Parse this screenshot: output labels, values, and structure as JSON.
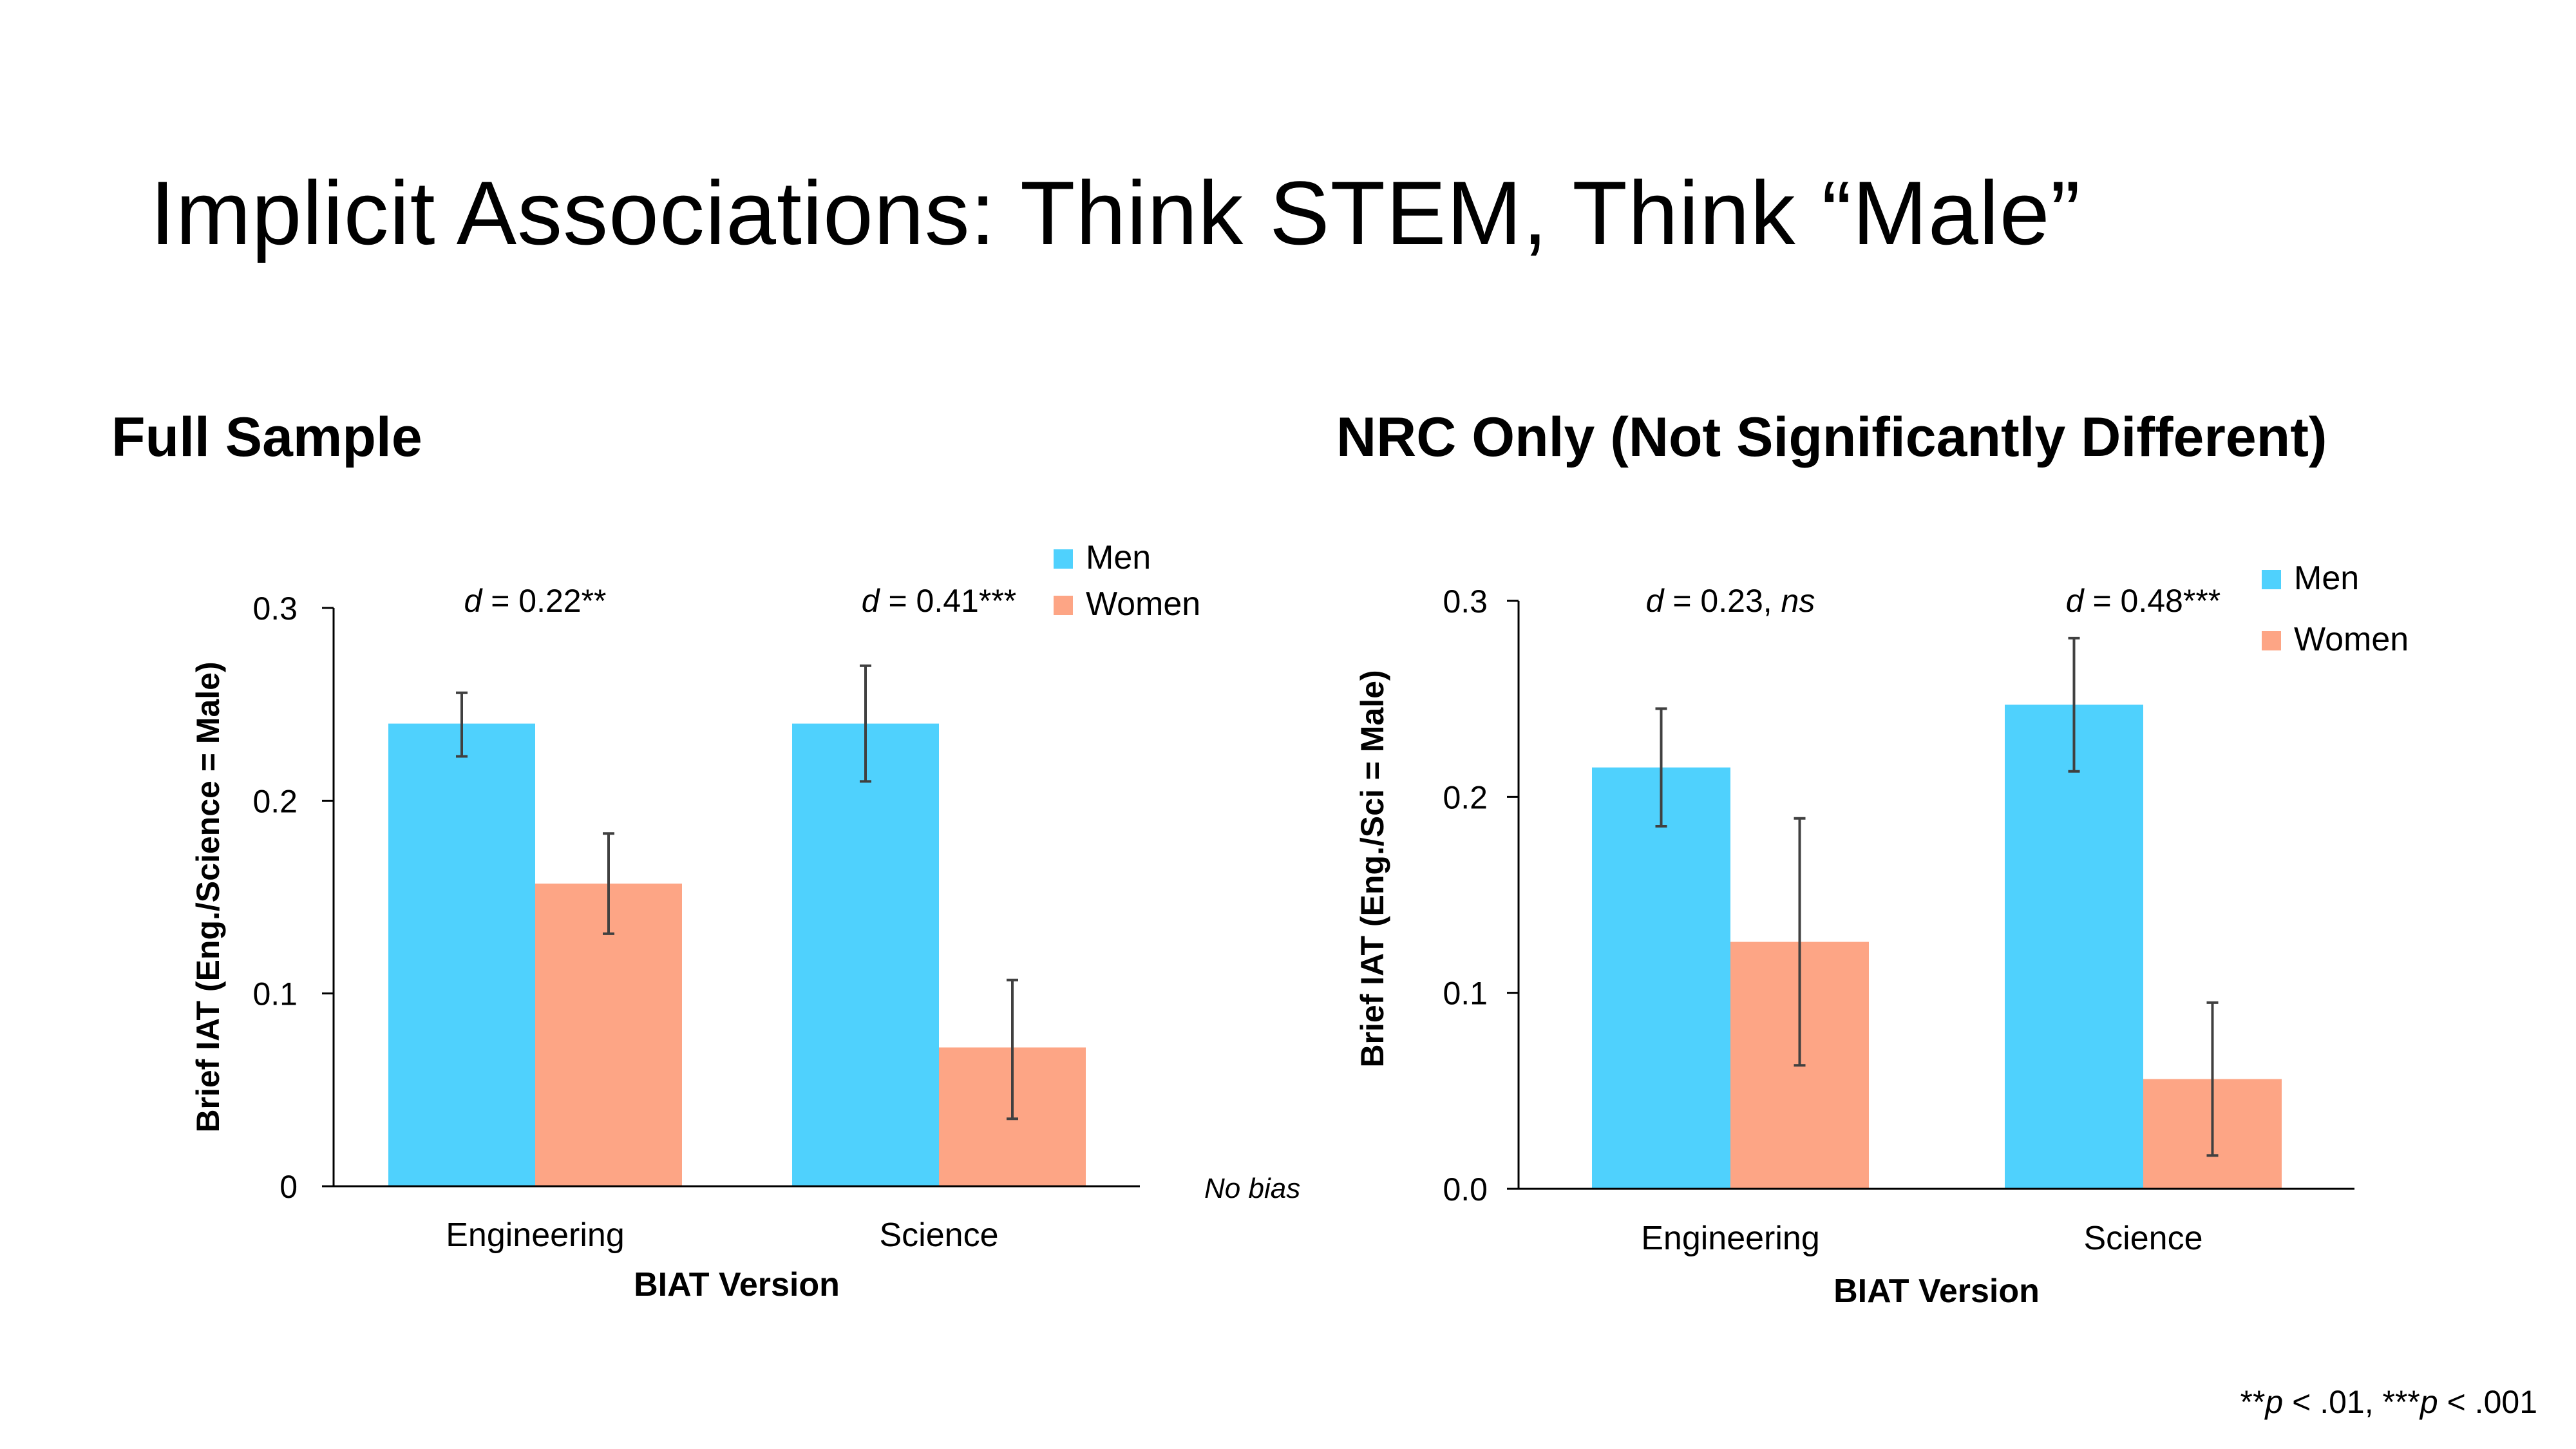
{
  "slide_title": "Implicit Associations: Think STEM, Think “Male”",
  "footnote": {
    "segments": [
      {
        "text": "**",
        "italic": false
      },
      {
        "text": "p",
        "italic": true
      },
      {
        "text": " < .01, ***",
        "italic": false
      },
      {
        "text": "p",
        "italic": true
      },
      {
        "text": " < .001",
        "italic": false
      }
    ]
  },
  "colors": {
    "men": "#4fd1fd",
    "women": "#fda585",
    "axis": "#000000",
    "error_bar": "#404040"
  },
  "chart_data": [
    {
      "id": "full",
      "type": "bar",
      "title": "Full Sample",
      "xlabel": "BIAT Version",
      "ylabel": "Brief IAT (Eng./Science = Male)",
      "categories": [
        "Engineering",
        "Science"
      ],
      "ylim": [
        0,
        0.3
      ],
      "yticks": [
        {
          "value": 0,
          "label": "0"
        },
        {
          "value": 0.1,
          "label": "0.1"
        },
        {
          "value": 0.2,
          "label": "0.2"
        },
        {
          "value": 0.3,
          "label": "0.3"
        }
      ],
      "series": [
        {
          "name": "Men",
          "color": "#4fd1fd",
          "values": [
            0.24,
            0.24
          ],
          "error_low": [
            0.223,
            0.21
          ],
          "error_high": [
            0.256,
            0.27
          ]
        },
        {
          "name": "Women",
          "color": "#fda585",
          "values": [
            0.157,
            0.072
          ],
          "error_low": [
            0.131,
            0.035
          ],
          "error_high": [
            0.183,
            0.107
          ]
        }
      ],
      "annotations": [
        {
          "prefix": "d",
          "text": " = 0.22**",
          "category": 0
        },
        {
          "prefix": "d",
          "text": " = 0.41***",
          "category": 1
        }
      ],
      "baseline_note": "No bias",
      "legend": "top-right"
    },
    {
      "id": "nrc",
      "type": "bar",
      "title": "NRC Only (Not Significantly Different)",
      "xlabel": "BIAT Version",
      "ylabel": "Brief IAT (Eng./Sci = Male)",
      "categories": [
        "Engineering",
        "Science"
      ],
      "ylim": [
        0,
        0.3
      ],
      "yticks": [
        {
          "value": 0,
          "label": "0.0"
        },
        {
          "value": 0.1,
          "label": "0.1"
        },
        {
          "value": 0.2,
          "label": "0.2"
        },
        {
          "value": 0.3,
          "label": "0.3"
        }
      ],
      "series": [
        {
          "name": "Men",
          "color": "#4fd1fd",
          "values": [
            0.215,
            0.247
          ],
          "error_low": [
            0.185,
            0.213
          ],
          "error_high": [
            0.245,
            0.281
          ]
        },
        {
          "name": "Women",
          "color": "#fda585",
          "values": [
            0.126,
            0.056
          ],
          "error_low": [
            0.063,
            0.017
          ],
          "error_high": [
            0.189,
            0.095
          ]
        }
      ],
      "annotations": [
        {
          "prefix": "d",
          "text": " = 0.23, ",
          "suffix_italic": "ns",
          "category": 0
        },
        {
          "prefix": "d",
          "text": " = 0.48***",
          "category": 1
        }
      ],
      "legend": "top-right"
    }
  ]
}
